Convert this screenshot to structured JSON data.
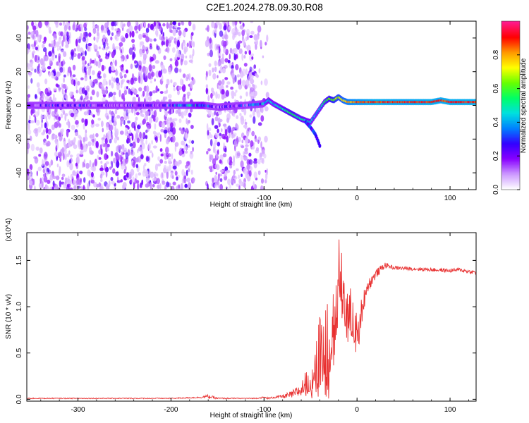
{
  "figure": {
    "title": "C2E1.2024.278.09.30.R08"
  },
  "chart_data": [
    {
      "type": "heatmap",
      "title": "",
      "xlabel": "Height of straight line (km)",
      "ylabel": "Frequency (Hz)",
      "xlim": [
        -355,
        128
      ],
      "ylim": [
        -50,
        50
      ],
      "x_ticks": [
        -300,
        -200,
        -100,
        0,
        100
      ],
      "x_tick_labels": [
        "-300",
        "-200",
        "-100",
        "0",
        "100"
      ],
      "y_ticks": [
        -40,
        -20,
        0,
        20,
        40
      ],
      "y_tick_labels": [
        "-40",
        "-20",
        "0",
        "20",
        "40"
      ],
      "colorbar": {
        "label": "Normalized spectral amplitude",
        "range": [
          0,
          1
        ],
        "ticks": [
          0.0,
          0.2,
          0.4,
          0.6,
          0.8
        ],
        "tick_labels": [
          "0.0",
          "0.2",
          "0.4",
          "0.6",
          "0.8"
        ],
        "colormap": [
          "#ffffff",
          "#cc99ff",
          "#8800ff",
          "#3300ff",
          "#0080ff",
          "#00e0e0",
          "#00ff66",
          "#66ff00",
          "#ffff00",
          "#ff9900",
          "#ff0000",
          "#ff1a8c"
        ]
      },
      "noise_region": {
        "x": [
          -355,
          -95
        ],
        "y": [
          -50,
          50
        ],
        "gap_x": [
          -175,
          -162
        ]
      },
      "signal_trace": {
        "x": [
          -350,
          -300,
          -250,
          -200,
          -180,
          -165,
          -150,
          -120,
          -100,
          -95,
          -90,
          -80,
          -70,
          -60,
          -50,
          -45,
          -40,
          -35,
          -30,
          -25,
          -20,
          -15,
          -10,
          0,
          20,
          50,
          80,
          90,
          100,
          128
        ],
        "y": [
          0,
          0,
          0,
          0,
          0,
          0,
          -1,
          0,
          1,
          3,
          1,
          -2,
          -5,
          -8,
          -10,
          -6,
          -2,
          2,
          4,
          3,
          5,
          3,
          2,
          2,
          2,
          2,
          2,
          3,
          2,
          2
        ],
        "amplitude": [
          0.15,
          0.18,
          0.15,
          0.25,
          0.35,
          0.4,
          0.1,
          0.25,
          0.35,
          0.45,
          0.4,
          0.5,
          0.55,
          0.5,
          0.45,
          0.4,
          0.45,
          0.5,
          0.6,
          0.65,
          0.7,
          0.75,
          0.8,
          0.85,
          0.9,
          0.88,
          0.9,
          0.88,
          0.9,
          0.9
        ]
      },
      "branch_trace": {
        "x": [
          -55,
          -50,
          -45,
          -42,
          -40
        ],
        "y": [
          -10,
          -13,
          -17,
          -21,
          -24
        ]
      }
    },
    {
      "type": "line",
      "title": "",
      "xlabel": "Height of straight line (km)",
      "ylabel": "SNR (10 * v/v)",
      "y_multiplier": "(x10^4)",
      "xlim": [
        -355,
        128
      ],
      "ylim": [
        -0.02,
        1.8
      ],
      "x_ticks": [
        -300,
        -200,
        -100,
        0,
        100
      ],
      "x_tick_labels": [
        "-300",
        "-200",
        "-100",
        "0",
        "100"
      ],
      "y_ticks": [
        0.0,
        0.5,
        1.0,
        1.5
      ],
      "y_tick_labels": [
        "0.0",
        "0.5",
        "1.0",
        "1.5"
      ],
      "series": [
        {
          "color": "#e83030",
          "x": [
            -355,
            -300,
            -250,
            -200,
            -170,
            -160,
            -150,
            -130,
            -110,
            -100,
            -95,
            -90,
            -80,
            -70,
            -60,
            -50,
            -45,
            -40,
            -35,
            -30,
            -25,
            -22,
            -18,
            -15,
            -10,
            -5,
            0,
            5,
            10,
            20,
            30,
            40,
            60,
            80,
            100,
            110,
            120,
            128
          ],
          "y": [
            0.01,
            0.01,
            0.01,
            0.01,
            0.02,
            0.03,
            0.01,
            0.01,
            0.01,
            0.02,
            0.01,
            0.02,
            0.03,
            0.05,
            0.1,
            0.25,
            0.3,
            0.45,
            0.6,
            0.75,
            0.85,
            1.1,
            1.45,
            1.2,
            1.0,
            0.9,
            0.75,
            0.95,
            1.2,
            1.35,
            1.45,
            1.42,
            1.41,
            1.4,
            1.39,
            1.4,
            1.38,
            1.37
          ],
          "noise_amplitude": [
            0.005,
            0.005,
            0.005,
            0.005,
            0.008,
            0.02,
            0.008,
            0.005,
            0.005,
            0.01,
            0.01,
            0.01,
            0.02,
            0.04,
            0.08,
            0.2,
            0.3,
            0.45,
            0.55,
            0.6,
            0.55,
            0.45,
            0.4,
            0.35,
            0.3,
            0.25,
            0.2,
            0.15,
            0.08,
            0.05,
            0.03,
            0.02,
            0.02,
            0.02,
            0.02,
            0.02,
            0.02,
            0.02
          ]
        }
      ]
    }
  ]
}
